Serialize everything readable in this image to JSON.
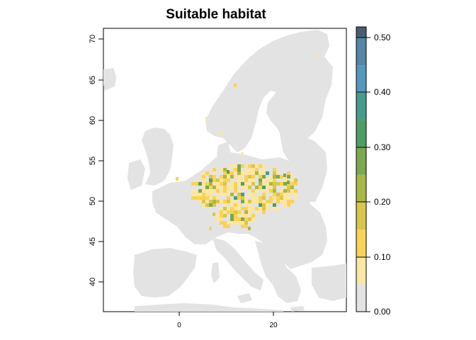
{
  "title": "Suitable habitat",
  "map": {
    "land_color": "#e3e3e3",
    "x_ticks": [
      "0",
      "20"
    ],
    "y_ticks": [
      "70",
      "65",
      "60",
      "55",
      "50",
      "45",
      "40"
    ]
  },
  "legend": {
    "labels": [
      "0.50",
      "0.40",
      "0.30",
      "0.20",
      "0.10",
      "0.00"
    ],
    "bins": [
      {
        "range": [
          0.0,
          0.05
        ],
        "color": "#e3e3e3"
      },
      {
        "range": [
          0.05,
          0.1
        ],
        "color": "#fde6a3"
      },
      {
        "range": [
          0.1,
          0.15
        ],
        "color": "#f8d356"
      },
      {
        "range": [
          0.15,
          0.2
        ],
        "color": "#d9c64a"
      },
      {
        "range": [
          0.2,
          0.25
        ],
        "color": "#a8b845"
      },
      {
        "range": [
          0.25,
          0.3
        ],
        "color": "#7aa94e"
      },
      {
        "range": [
          0.3,
          0.35
        ],
        "color": "#4f9f62"
      },
      {
        "range": [
          0.35,
          0.4
        ],
        "color": "#469c8c"
      },
      {
        "range": [
          0.4,
          0.45
        ],
        "color": "#5498bd"
      },
      {
        "range": [
          0.45,
          0.5
        ],
        "color": "#5686a5"
      },
      {
        "range": [
          0.5,
          0.52
        ],
        "color": "#4a5e72"
      }
    ]
  }
}
